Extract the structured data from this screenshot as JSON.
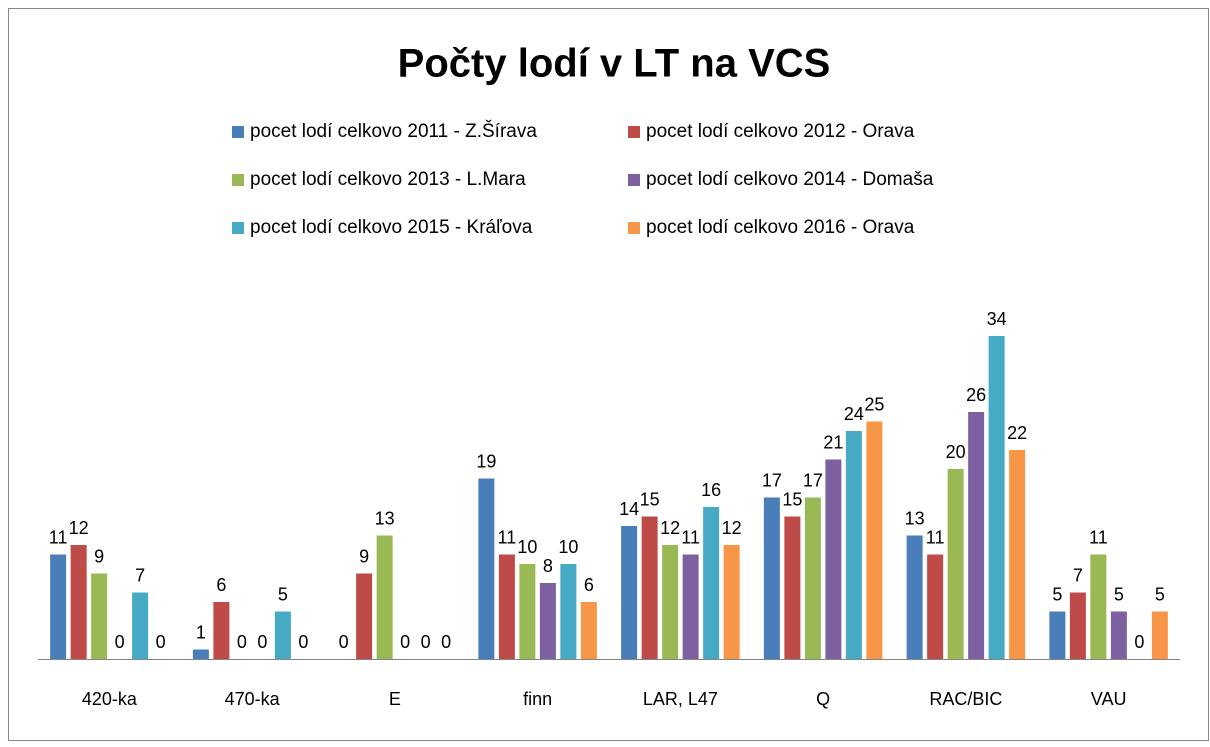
{
  "chart_data": {
    "type": "bar",
    "title": "Počty lodí v LT na VCS",
    "categories": [
      "420-ka",
      "470-ka",
      "E",
      "finn",
      "LAR, L47",
      "Q",
      "RAC/BIC",
      "VAU"
    ],
    "series": [
      {
        "name": "pocet lodí celkovo 2011 - Z.Šírava",
        "color": "#4a7ebb",
        "values": [
          11,
          1,
          0,
          19,
          14,
          17,
          13,
          5
        ]
      },
      {
        "name": "pocet lodí celkovo 2012 - Orava",
        "color": "#be4b48",
        "values": [
          12,
          6,
          9,
          11,
          15,
          15,
          11,
          7
        ]
      },
      {
        "name": "pocet lodí celkovo 2013 - L.Mara",
        "color": "#98b954",
        "values": [
          9,
          0,
          13,
          10,
          12,
          17,
          20,
          11
        ]
      },
      {
        "name": "pocet lodí celkovo 2014 - Domaša",
        "color": "#7d60a0",
        "values": [
          0,
          0,
          0,
          8,
          11,
          21,
          26,
          5
        ]
      },
      {
        "name": "pocet lodí celkovo 2015 - Kráľova",
        "color": "#46aac5",
        "values": [
          7,
          5,
          0,
          10,
          16,
          24,
          34,
          0
        ]
      },
      {
        "name": "pocet lodí celkovo 2016 - Orava",
        "color": "#f79646",
        "values": [
          0,
          0,
          0,
          6,
          12,
          25,
          22,
          5
        ]
      }
    ]
  }
}
